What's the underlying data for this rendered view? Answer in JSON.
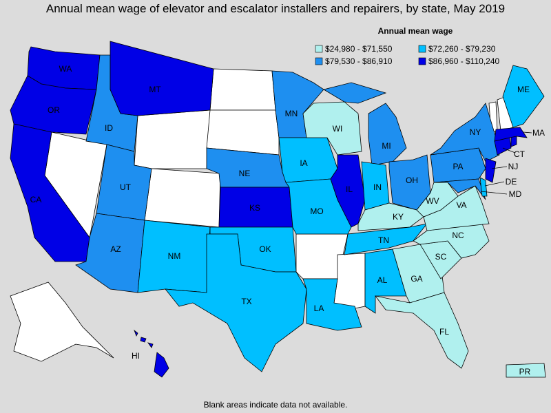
{
  "title": "Annual mean wage of elevator and escalator installers and repairers, by state, May 2019",
  "legend": {
    "title": "Annual mean wage",
    "items": [
      {
        "label": "$24,980 - $71,550",
        "color": "#b0f0ee"
      },
      {
        "label": "$72,260 - $79,230",
        "color": "#00bfff"
      },
      {
        "label": "$79,530 - $86,910",
        "color": "#1e8ff0"
      },
      {
        "label": "$86,960 - $110,240",
        "color": "#0000e6"
      }
    ]
  },
  "states": [
    {
      "label": "WA",
      "bin": 3
    },
    {
      "label": "OR",
      "bin": 3
    },
    {
      "label": "CA",
      "bin": 3
    },
    {
      "label": "ID",
      "bin": 2
    },
    {
      "label": "MT",
      "bin": 3
    },
    {
      "label": "UT",
      "bin": 2
    },
    {
      "label": "AZ",
      "bin": 2
    },
    {
      "label": "NM",
      "bin": 1
    },
    {
      "label": "NE",
      "bin": 2
    },
    {
      "label": "KS",
      "bin": 3
    },
    {
      "label": "OK",
      "bin": 1
    },
    {
      "label": "TX",
      "bin": 1
    },
    {
      "label": "MN",
      "bin": 2
    },
    {
      "label": "IA",
      "bin": 1
    },
    {
      "label": "MO",
      "bin": 1
    },
    {
      "label": "LA",
      "bin": 1
    },
    {
      "label": "WI",
      "bin": 0
    },
    {
      "label": "IL",
      "bin": 3
    },
    {
      "label": "MI",
      "bin": 2
    },
    {
      "label": "IN",
      "bin": 1
    },
    {
      "label": "OH",
      "bin": 2
    },
    {
      "label": "KY",
      "bin": 0
    },
    {
      "label": "TN",
      "bin": 1
    },
    {
      "label": "AL",
      "bin": 1
    },
    {
      "label": "GA",
      "bin": 0
    },
    {
      "label": "FL",
      "bin": 0
    },
    {
      "label": "SC",
      "bin": 0
    },
    {
      "label": "NC",
      "bin": 0
    },
    {
      "label": "VA",
      "bin": 0
    },
    {
      "label": "WV",
      "bin": 0
    },
    {
      "label": "PA",
      "bin": 2
    },
    {
      "label": "NY",
      "bin": 2
    },
    {
      "label": "MD",
      "bin": 2
    },
    {
      "label": "DE",
      "bin": 1
    },
    {
      "label": "NJ",
      "bin": 3
    },
    {
      "label": "CT",
      "bin": 3
    },
    {
      "bin": 3
    },
    {
      "label": "MA",
      "bin": 3
    },
    {
      "label": "ME",
      "bin": 1
    },
    {
      "label": "HI",
      "bin": 3
    },
    {
      "label": "PR",
      "bin": 0
    }
  ],
  "footnote": "Blank areas indicate data not available."
}
